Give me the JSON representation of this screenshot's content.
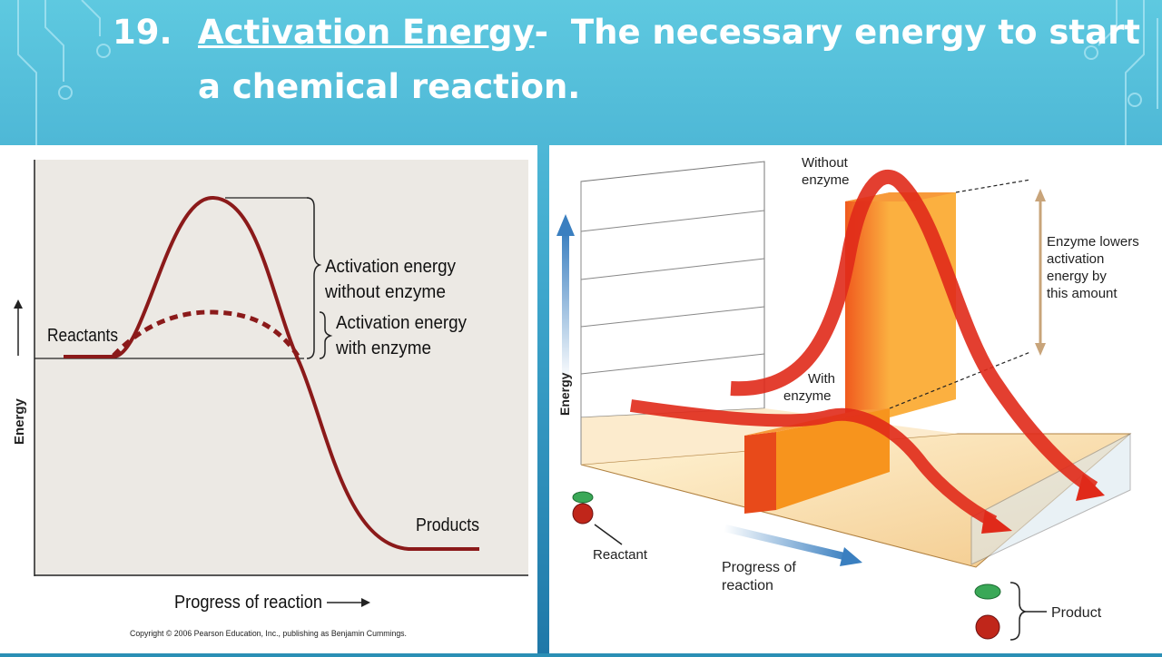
{
  "slide": {
    "number": "19.",
    "term": "Activation Energy",
    "dash": "-",
    "definition_line1": "The necessary energy to start",
    "definition_line2": "a chemical reaction."
  },
  "left_diagram": {
    "y_axis_label": "Energy",
    "x_axis_label": "Progress of reaction",
    "reactants_label": "Reactants",
    "products_label": "Products",
    "ea_without_line1": "Activation energy",
    "ea_without_line2": "without enzyme",
    "ea_with_line1": "Activation energy",
    "ea_with_line2": "with enzyme",
    "copyright": "Copyright © 2006 Pearson Education, Inc., publishing as Benjamin Cummings.",
    "colors": {
      "curve": "#8b1a1a",
      "background": "#ece9e4"
    }
  },
  "right_diagram": {
    "y_axis_label": "Energy",
    "x_axis_label_line1": "Progress of",
    "x_axis_label_line2": "reaction",
    "without_enzyme_line1": "Without",
    "without_enzyme_line2": "enzyme",
    "with_enzyme_line1": "With",
    "with_enzyme_line2": "enzyme",
    "lowers_line1": "Enzyme lowers",
    "lowers_line2": "activation",
    "lowers_line3": "energy by",
    "lowers_line4": "this amount",
    "reactant_label": "Reactant",
    "product_label": "Product",
    "colors": {
      "arrow": "#e02a1a",
      "block": "#f7941d",
      "floor": "#f6d9a8"
    }
  }
}
